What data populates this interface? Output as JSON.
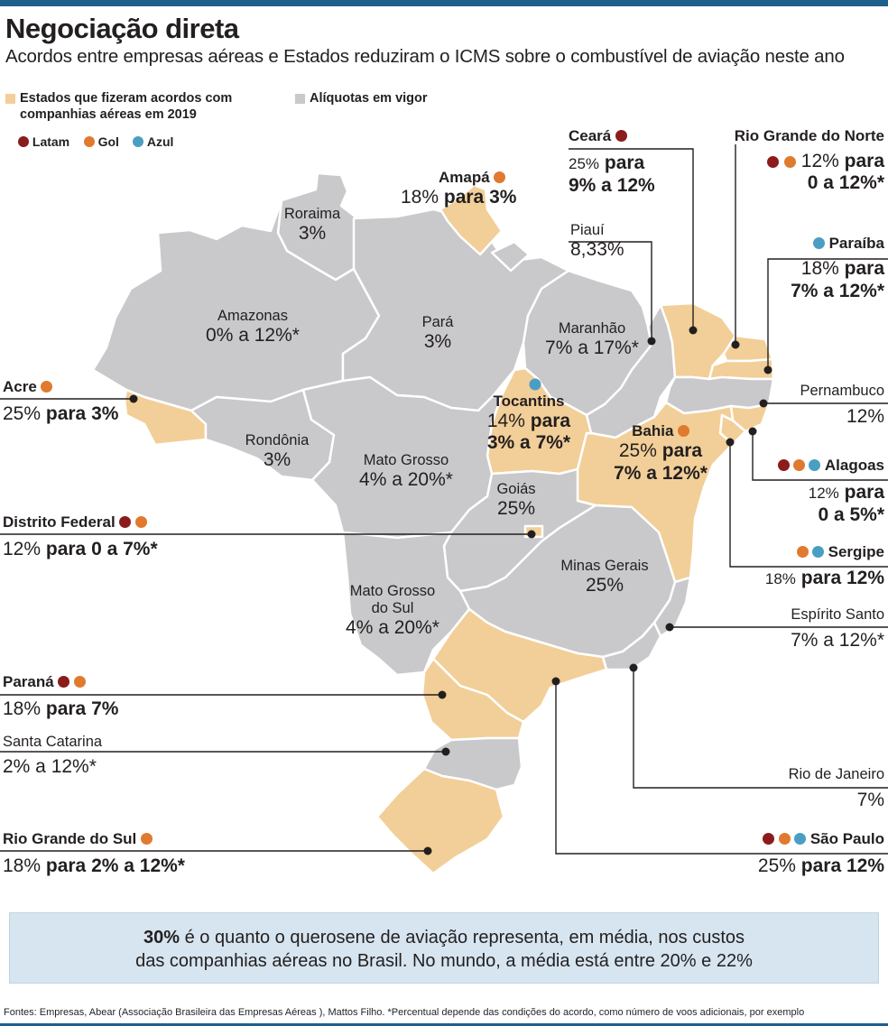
{
  "header": {
    "title": "Negociação direta",
    "subtitle": "Acordos entre empresas aéreas e Estados reduziram o ICMS sobre o combustível de aviação neste ano"
  },
  "legend": {
    "agreement": "Estados que fizeram acordos com companhias aéreas em 2019",
    "agreement_line1": "Estados que fizeram acordos com",
    "agreement_line2": "companhias aéreas em 2019",
    "current": "Alíquotas em vigor",
    "airlines": [
      {
        "name": "Latam",
        "color": "#8b1c1c"
      },
      {
        "name": "Gol",
        "color": "#e07a2e"
      },
      {
        "name": "Azul",
        "color": "#4a9ec4"
      }
    ]
  },
  "colors": {
    "agreement_fill": "#f2cf98",
    "current_fill": "#c9c8ca",
    "border": "#ffffff",
    "accent_bar": "#1f5f8b",
    "info_bg": "#d6e5ef"
  },
  "states": {
    "roraima": {
      "name": "Roraima",
      "rate": "3%"
    },
    "amapa": {
      "name": "Amapá",
      "rate_from": "18%",
      "rate_to": "para 3%",
      "airlines": [
        "Gol"
      ]
    },
    "amazonas": {
      "name": "Amazonas",
      "rate": "0% a 12%*"
    },
    "para": {
      "name": "Pará",
      "rate": "3%"
    },
    "maranhao": {
      "name": "Maranhão",
      "rate": "7% a 17%*"
    },
    "piaui": {
      "name": "Piauí",
      "rate": "8,33%"
    },
    "ceara": {
      "name": "Ceará",
      "rate_from": "25%",
      "rate_to": "para 9% a 12%",
      "rate_to_1": "para",
      "rate_to_2": "9% a 12%",
      "airlines": [
        "Latam"
      ]
    },
    "rio_grande_do_norte": {
      "name": "Rio Grande do Norte",
      "rate_from": "12%",
      "rate_to": "para 0 a 12%*",
      "rate_to_1": "para",
      "rate_to_2": "0 a 12%*",
      "airlines": [
        "Latam",
        "Gol"
      ]
    },
    "paraiba": {
      "name": "Paraíba",
      "rate_from": "18%",
      "rate_to": "para 7% a 12%*",
      "rate_to_1": "para",
      "rate_to_2": "7% a 12%*",
      "airlines": [
        "Azul"
      ]
    },
    "pernambuco": {
      "name": "Pernambuco",
      "rate": "12%"
    },
    "alagoas": {
      "name": "Alagoas",
      "rate_from": "12%",
      "rate_to": "para 0 a 5%*",
      "rate_to_1": "para",
      "rate_to_2": "0 a 5%*",
      "airlines": [
        "Latam",
        "Gol",
        "Azul"
      ]
    },
    "sergipe": {
      "name": "Sergipe",
      "rate_from": "18%",
      "rate_to": "para 12%",
      "airlines": [
        "Gol",
        "Azul"
      ]
    },
    "bahia": {
      "name": "Bahia",
      "rate_from": "25%",
      "rate_to": "para 7% a 12%*",
      "rate_to_1": "para",
      "rate_to_2": "7% a 12%*",
      "airlines": [
        "Gol"
      ]
    },
    "tocantins": {
      "name": "Tocantins",
      "rate_from": "14%",
      "rate_to": "para 3% a 7%*",
      "rate_to_1": "para",
      "rate_to_2": "3% a 7%*",
      "airlines": [
        "Azul"
      ]
    },
    "acre": {
      "name": "Acre",
      "rate_from": "25%",
      "rate_to": "para 3%",
      "airlines": [
        "Gol"
      ]
    },
    "rondonia": {
      "name": "Rondônia",
      "rate": "3%"
    },
    "mato_grosso": {
      "name": "Mato Grosso",
      "rate": "4% a 20%*"
    },
    "goias": {
      "name": "Goiás",
      "rate": "25%"
    },
    "distrito_federal": {
      "name": "Distrito Federal",
      "rate_from": "12%",
      "rate_to": "para 0 a 7%*",
      "airlines": [
        "Latam",
        "Gol"
      ]
    },
    "minas_gerais": {
      "name": "Minas Gerais",
      "rate": "25%"
    },
    "mato_grosso_do_sul": {
      "name": "Mato Grosso do Sul",
      "name_1": "Mato Grosso",
      "name_2": "do Sul",
      "rate": "4% a 20%*"
    },
    "espirito_santo": {
      "name": "Espírito Santo",
      "rate": "7% a 12%*"
    },
    "rio_de_janeiro": {
      "name": "Rio de Janeiro",
      "rate": "7%"
    },
    "sao_paulo": {
      "name": "São Paulo",
      "rate_from": "25%",
      "rate_to": "para 12%",
      "airlines": [
        "Latam",
        "Gol",
        "Azul"
      ]
    },
    "parana": {
      "name": "Paraná",
      "rate_from": "18%",
      "rate_to": "para 7%",
      "airlines": [
        "Latam",
        "Gol"
      ]
    },
    "santa_catarina": {
      "name": "Santa Catarina",
      "rate": "2% a 12%*"
    },
    "rio_grande_do_sul": {
      "name": "Rio Grande do Sul",
      "rate_from": "18%",
      "rate_to": "para 2% a 12%*",
      "airlines": [
        "Gol"
      ]
    }
  },
  "info": {
    "highlight": "30%",
    "text_line1": "é o quanto o querosene de aviação representa, em média, nos custos",
    "text_line2": "das companhias aéreas no Brasil. No mundo, a média está entre 20% e 22%"
  },
  "footer": {
    "text": "Fontes: Empresas, Abear (Associação Brasileira das Empresas Aéreas ), Mattos Filho. *Percentual depende das condições do acordo, como número de voos adicionais, por exemplo"
  }
}
